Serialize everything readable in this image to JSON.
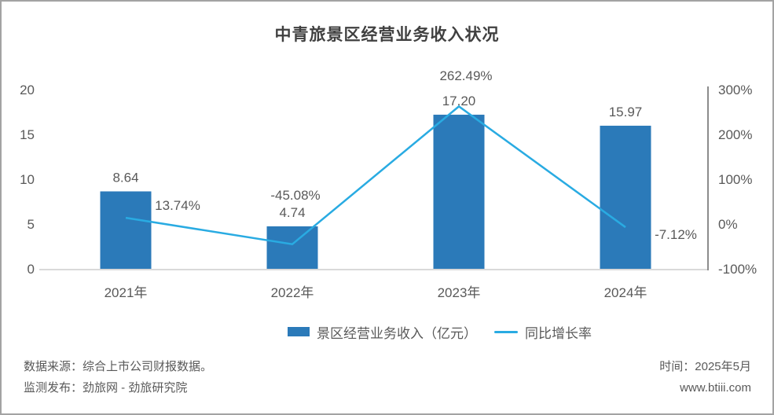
{
  "title": "中青旅景区经营业务收入状况",
  "chart_data": {
    "type": "combo",
    "title": "中青旅景区经营业务收入状况",
    "categories": [
      "2021年",
      "2022年",
      "2023年",
      "2024年"
    ],
    "series": [
      {
        "name": "景区经营业务收入（亿元）",
        "chart": "bar",
        "axis": "left",
        "color": "#2B7AB9",
        "values": [
          8.64,
          4.74,
          17.2,
          15.97
        ],
        "labels": [
          "8.64",
          "4.74",
          "17.20",
          "15.97"
        ]
      },
      {
        "name": "同比增长率",
        "chart": "line",
        "axis": "right",
        "color": "#29ABE2",
        "values": [
          13.74,
          -45.08,
          262.49,
          -7.12
        ],
        "labels": [
          "13.74%",
          "-45.08%",
          "262.49%",
          "-7.12%"
        ]
      }
    ],
    "left_axis": {
      "range": [
        0,
        20
      ],
      "ticks": [
        0,
        5,
        10,
        15,
        20
      ],
      "tick_labels": [
        "0",
        "5",
        "10",
        "15",
        "20"
      ]
    },
    "right_axis": {
      "range": [
        -100,
        300
      ],
      "ticks": [
        -100,
        0,
        100,
        200,
        300
      ],
      "tick_labels": [
        "-100%",
        "0%",
        "100%",
        "200%",
        "300%"
      ]
    },
    "grid": false,
    "legend_position": "bottom-center"
  },
  "legend": {
    "bar_label": "景区经营业务收入（亿元）",
    "line_label": "同比增长率"
  },
  "footer": {
    "source": "数据来源：综合上市公司财报数据。",
    "publisher": "监测发布：劲旅网 - 劲旅研究院",
    "time": "时间：2025年5月",
    "website": "www.btiii.com"
  },
  "colors": {
    "bar": "#2B7AB9",
    "line": "#29ABE2",
    "label_text": "#595959",
    "title_text": "#404040",
    "right_axis_line": "#8C8C8C",
    "baseline": "#D9D9D9",
    "border": "#A3A3A3"
  }
}
